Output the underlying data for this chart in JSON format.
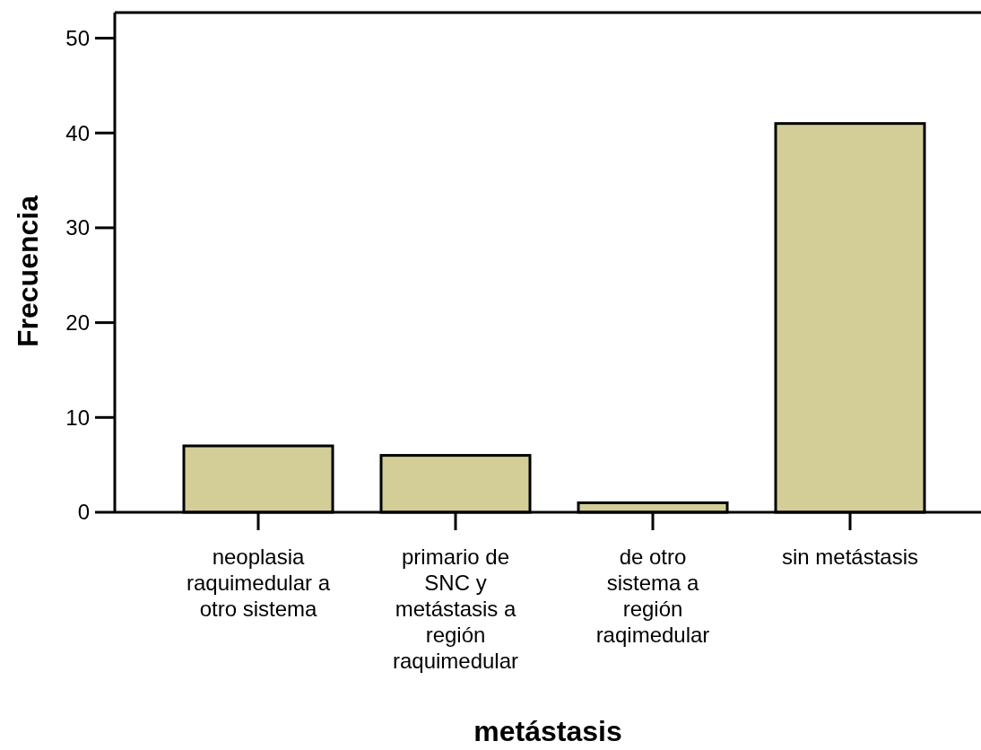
{
  "chart_data": {
    "type": "bar",
    "xlabel": "metástasis",
    "ylabel": "Frecuencia",
    "categories": [
      "neoplasia raquimedular a otro sistema",
      "primario de SNC y metástasis a región raquimedular",
      "de otro sistema a región raqimedular",
      "sin metástasis"
    ],
    "values": [
      7,
      6,
      1,
      41
    ],
    "color": "#d3ce97",
    "ylim": [
      0,
      52.7
    ],
    "yticks": [
      0,
      10,
      20,
      30,
      40,
      50
    ],
    "grid": false
  }
}
